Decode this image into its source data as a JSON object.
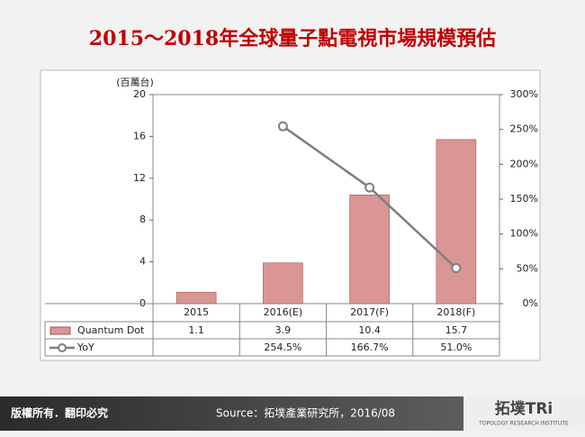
{
  "chart_data": {
    "type": "bar",
    "title": "2015～2018年全球量子點電視市場規模預估",
    "y_label": "(百萬台)",
    "categories": [
      "2015",
      "2016(E)",
      "2017(F)",
      "2018(F)"
    ],
    "series": [
      {
        "name": "Quantum Dot",
        "type": "bar",
        "color": "#d99694",
        "values": [
          1.1,
          3.9,
          10.4,
          15.7
        ]
      },
      {
        "name": "YoY",
        "type": "line",
        "axis": "y2",
        "color": "#7f7f7f",
        "values": [
          null,
          254.5,
          166.7,
          51.0
        ],
        "value_labels": [
          null,
          "254.5%",
          "166.7%",
          "51.0%"
        ]
      }
    ],
    "ylim": [
      0,
      20
    ],
    "yticks": [
      0,
      4,
      8,
      12,
      16,
      20
    ],
    "y2lim": [
      0,
      300
    ],
    "y2ticks": [
      {
        "value": 0,
        "label": "0%"
      },
      {
        "value": 50,
        "label": "50%"
      },
      {
        "value": 100,
        "label": "100%"
      },
      {
        "value": 150,
        "label": "150%"
      },
      {
        "value": 200,
        "label": "200%"
      },
      {
        "value": 250,
        "label": "250%"
      },
      {
        "value": 300,
        "label": "300%"
      }
    ]
  },
  "footer": {
    "rights": "版權所有．翻印必究",
    "source": "Source：拓墣產業研究所，2016/08",
    "logo": "拓墣TRi",
    "logo_sub": "TOPOLOGY RESEARCH INSTITUTE"
  }
}
